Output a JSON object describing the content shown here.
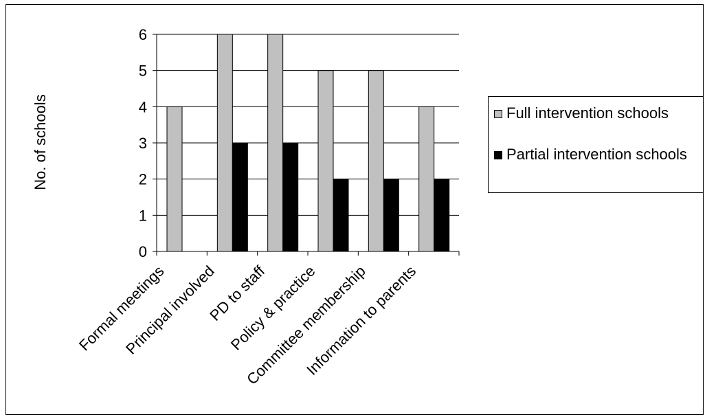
{
  "chart_data": {
    "type": "bar",
    "categories": [
      "Formal meetings",
      "Principal involved",
      "PD to staff",
      "Policy & practice",
      "Committee membership",
      "Information to parents"
    ],
    "series": [
      {
        "name": "Full intervention schools",
        "values": [
          4,
          6,
          6,
          5,
          5,
          4
        ],
        "color": "#c0c0c0"
      },
      {
        "name": "Partial intervention schools",
        "values": [
          0,
          3,
          3,
          2,
          2,
          2
        ],
        "color": "#000000"
      }
    ],
    "ylabel": "No. of schools",
    "xlabel": "",
    "ylim": [
      0,
      6
    ],
    "yticks": [
      "0",
      "1",
      "2",
      "3",
      "4",
      "5",
      "6"
    ],
    "grid": true,
    "legend_position": "right"
  }
}
